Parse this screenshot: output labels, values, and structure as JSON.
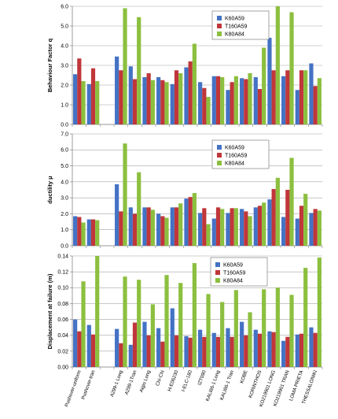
{
  "chart_data": [
    {
      "type": "bar",
      "ylabel": "Behaviour Factor q",
      "ylim": [
        0,
        6
      ],
      "ytick_step": 1,
      "ytick_decimals": 1,
      "legend": "top-right",
      "categories": [
        "Pushover-uniform",
        "Pushover-tran",
        "",
        "A299-1 Long",
        "A299-1Tran",
        "Aigio Long",
        "Chi-Chi",
        "H-E06230",
        "I-ELC-180",
        "IZT090",
        "KALI86-1 Long",
        "KALI86-1 Tran",
        "KOBE",
        "KORINTHOS",
        "KO219901 LONG",
        "KO219901 TRAN",
        "LOMA PRIETA",
        "THESSALONIKI"
      ],
      "series": [
        {
          "name": "K60A59",
          "values": [
            2.55,
            2.05,
            null,
            3.45,
            2.95,
            2.4,
            2.4,
            2.05,
            2.9,
            2.15,
            2.45,
            1.75,
            2.35,
            2.4,
            4.4,
            2.45,
            1.75,
            3.1
          ]
        },
        {
          "name": "T160A59",
          "values": [
            3.35,
            2.85,
            null,
            2.75,
            2.3,
            2.6,
            2.25,
            2.75,
            3.2,
            1.85,
            2.45,
            2.15,
            2.3,
            1.8,
            2.75,
            2.75,
            2.75,
            1.95
          ]
        },
        {
          "name": "K80A84",
          "values": [
            2.2,
            2.2,
            null,
            5.9,
            5.45,
            2.25,
            2.15,
            2.6,
            4.1,
            1.4,
            2.4,
            2.45,
            2.6,
            3.9,
            6.0,
            5.7,
            2.75,
            2.35
          ]
        }
      ]
    },
    {
      "type": "bar",
      "ylabel": "ductility μ",
      "ylim": [
        0,
        7
      ],
      "ytick_step": 1,
      "ytick_decimals": 1,
      "legend": "top-right",
      "categories": [
        "Pushover-uniform",
        "Pushover-tran",
        "",
        "A299-1 Long",
        "A299-1Tran",
        "Aigio Long",
        "Chi-Chi",
        "H-E06230",
        "I-ELC-180",
        "IZT090",
        "KALI86-1 Long",
        "KALI86-1 Tran",
        "KOBE",
        "KORINTHOS",
        "KO219901 LONG",
        "KO219901 TRAN",
        "LOMA PRIETA",
        "THESSALONIKI"
      ],
      "series": [
        {
          "name": "K60A59",
          "values": [
            1.85,
            1.65,
            null,
            3.85,
            2.4,
            2.4,
            2.0,
            2.4,
            2.95,
            2.05,
            1.7,
            2.05,
            2.3,
            2.4,
            2.9,
            1.8,
            1.7,
            2.05
          ]
        },
        {
          "name": "T160A59",
          "values": [
            1.8,
            1.65,
            null,
            2.15,
            2.0,
            2.4,
            1.85,
            2.4,
            3.05,
            2.35,
            2.4,
            2.35,
            2.15,
            2.5,
            3.55,
            3.5,
            2.5,
            2.3
          ]
        },
        {
          "name": "K80A84",
          "values": [
            1.45,
            1.6,
            null,
            6.4,
            4.6,
            2.25,
            1.75,
            2.65,
            3.3,
            1.35,
            2.3,
            2.35,
            1.85,
            2.7,
            4.25,
            5.5,
            3.25,
            2.2
          ]
        }
      ]
    },
    {
      "type": "bar",
      "ylabel": "Displacement at failure (m)",
      "ylim": [
        0,
        0.14
      ],
      "ytick_step": 0.02,
      "ytick_decimals": 2,
      "legend": "top-right",
      "categories": [
        "Pushover-uniform",
        "Pushover-tran",
        "",
        "A299-1 Long",
        "A299-1Tran",
        "Aigio Long",
        "Chi-Chi",
        "H-E06230",
        "I-ELC-180",
        "IZT090",
        "KALI86-1 Long",
        "KALI86-1 Tran",
        "KOBE",
        "KORINTHOS",
        "KO219901 LONG",
        "KO219901 TRAN",
        "LOMA PRIETA",
        "THESSALONIKI"
      ],
      "series": [
        {
          "name": "K60A59",
          "values": [
            0.06,
            0.053,
            null,
            0.048,
            0.028,
            0.057,
            0.049,
            0.074,
            0.039,
            0.047,
            0.043,
            0.049,
            0.057,
            0.047,
            0.045,
            0.033,
            0.041,
            0.05
          ]
        },
        {
          "name": "T160A59",
          "values": [
            0.045,
            0.041,
            null,
            0.03,
            0.056,
            0.04,
            0.032,
            0.04,
            0.037,
            0.038,
            0.038,
            0.038,
            0.04,
            0.042,
            0.044,
            0.038,
            0.042,
            0.043
          ]
        },
        {
          "name": "K80A84",
          "values": [
            0.108,
            0.14,
            null,
            0.114,
            0.11,
            0.079,
            0.116,
            0.106,
            0.131,
            0.092,
            0.082,
            0.097,
            0.069,
            0.098,
            0.1,
            0.091,
            0.125,
            0.138
          ]
        }
      ]
    }
  ],
  "colors": {
    "K60A59": "#4472c4",
    "T160A59": "#c0363a",
    "K80A84": "#8cbf3f",
    "grid": "#a6a6a6",
    "axis": "#868686"
  }
}
